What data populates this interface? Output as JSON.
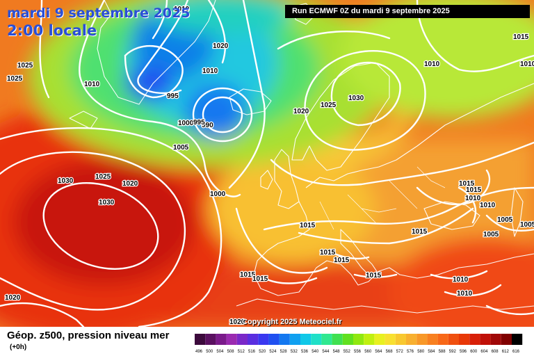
{
  "header": {
    "date_label": "mardi 9 septembre 2025",
    "time_label": "2:00 locale",
    "run_label": "Run ECMWF 0Z du mardi 9 septembre 2025"
  },
  "map": {
    "copyright": "Copyright 2025 Meteociel.fr",
    "isobar_labels": [
      {
        "text": "1010",
        "name": "isobar-label-1010-north"
      },
      {
        "text": "1025",
        "name": "isobar-label-1025-west-a"
      },
      {
        "text": "1025",
        "name": "isobar-label-1025-west-b"
      },
      {
        "text": "1010",
        "name": "isobar-label-1010-west"
      },
      {
        "text": "1020",
        "name": "isobar-label-1020-iceland"
      },
      {
        "text": "1010",
        "name": "isobar-label-1010-iceland"
      },
      {
        "text": "995",
        "name": "isobar-label-995"
      },
      {
        "text": "990",
        "name": "isobar-label-990"
      },
      {
        "text": "1000",
        "name": "isobar-label-1000-low"
      },
      {
        "text": "995",
        "name": "isobar-label-995-low"
      },
      {
        "text": "1005",
        "name": "isobar-label-1005-atlantic"
      },
      {
        "text": "1030",
        "name": "isobar-label-1030-azores-a"
      },
      {
        "text": "1025",
        "name": "isobar-label-1025-atlantic"
      },
      {
        "text": "1020",
        "name": "isobar-label-1020-atlantic"
      },
      {
        "text": "1030",
        "name": "isobar-label-1030-azores-b"
      },
      {
        "text": "1000",
        "name": "isobar-label-1000-scotland"
      },
      {
        "text": "1020",
        "name": "isobar-label-1020-norway"
      },
      {
        "text": "1025",
        "name": "isobar-label-1025-sweden"
      },
      {
        "text": "1030",
        "name": "isobar-label-1030-finland"
      },
      {
        "text": "1010",
        "name": "isobar-label-1010-russia"
      },
      {
        "text": "1015",
        "name": "isobar-label-1015-northeast"
      },
      {
        "text": "1010",
        "name": "isobar-label-1010-east"
      },
      {
        "text": "1015",
        "name": "isobar-label-1015-east-a"
      },
      {
        "text": "1015",
        "name": "isobar-label-1015-east-b"
      },
      {
        "text": "1010",
        "name": "isobar-label-1010-east-b"
      },
      {
        "text": "1010",
        "name": "isobar-label-1010-east-c"
      },
      {
        "text": "1005",
        "name": "isobar-label-1005-east"
      },
      {
        "text": "1005",
        "name": "isobar-label-1005-caucasus"
      },
      {
        "text": "1005",
        "name": "isobar-label-1005-middle-east"
      },
      {
        "text": "1015",
        "name": "isobar-label-1015-alps"
      },
      {
        "text": "1015",
        "name": "isobar-label-1015-balkans"
      },
      {
        "text": "1015",
        "name": "isobar-label-1015-italy-a"
      },
      {
        "text": "1015",
        "name": "isobar-label-1015-italy-b"
      },
      {
        "text": "1015",
        "name": "isobar-label-1015-spain-a"
      },
      {
        "text": "1015",
        "name": "isobar-label-1015-spain-b"
      },
      {
        "text": "1015",
        "name": "isobar-label-1015-mediterranean"
      },
      {
        "text": "1010",
        "name": "isobar-label-1010-turkey"
      },
      {
        "text": "1010",
        "name": "isobar-label-1010-cyprus"
      },
      {
        "text": "1020",
        "name": "isobar-label-1020-southwest"
      },
      {
        "text": "1020",
        "name": "isobar-label-1020-morocco"
      }
    ]
  },
  "footer": {
    "title": "Géop. z500, pression niveau mer",
    "offset": "(+0h)"
  },
  "legend": {
    "labels": [
      "496",
      "500",
      "504",
      "508",
      "512",
      "516",
      "520",
      "524",
      "528",
      "532",
      "536",
      "540",
      "544",
      "548",
      "552",
      "556",
      "560",
      "564",
      "568",
      "572",
      "576",
      "580",
      "584",
      "588",
      "592",
      "596",
      "600",
      "604",
      "608",
      "612",
      "616"
    ],
    "colors": [
      "#3c0a3c",
      "#5a1060",
      "#7a1a8a",
      "#9a2ab0",
      "#7a28c8",
      "#5a2ee0",
      "#3a38f0",
      "#2050f0",
      "#1478f0",
      "#10a0f0",
      "#10c8e8",
      "#20e0c8",
      "#30e890",
      "#40e050",
      "#60e020",
      "#90e810",
      "#c0f010",
      "#e8f020",
      "#f8e030",
      "#f8c830",
      "#f8b030",
      "#f89828",
      "#f88020",
      "#f86818",
      "#f05010",
      "#e83808",
      "#d82008",
      "#c01008",
      "#a00808",
      "#800000",
      "#000000"
    ]
  },
  "colors": {
    "title_blue": "#2a4fd6",
    "isobar": "#ffffff",
    "coastline": "#ffffff"
  }
}
